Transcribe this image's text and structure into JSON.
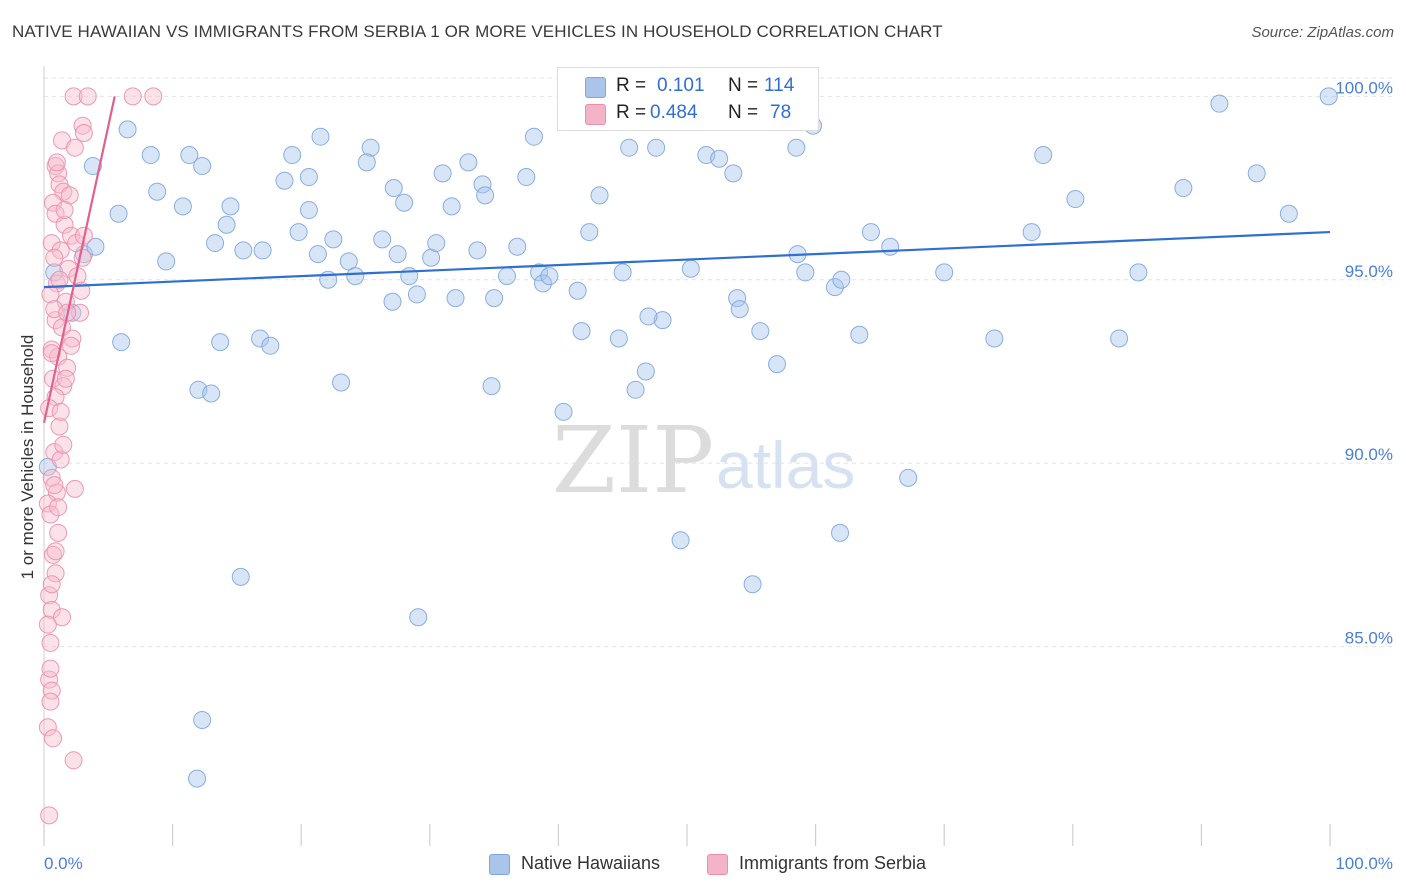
{
  "chart_data": {
    "type": "scatter",
    "title": "NATIVE HAWAIIAN VS IMMIGRANTS FROM SERBIA 1 OR MORE VEHICLES IN HOUSEHOLD CORRELATION CHART",
    "source": "Source: ZipAtlas.com",
    "xlabel": "",
    "ylabel": "1 or more Vehicles in Household",
    "xlim": [
      0,
      100
    ],
    "ylim": [
      80.0,
      100.5
    ],
    "x_tick_labels": [
      "0.0%",
      "100.0%"
    ],
    "y_ticks": [
      {
        "value": 100,
        "label": "100.0%"
      },
      {
        "value": 95,
        "label": "95.0%"
      },
      {
        "value": 90,
        "label": "90.0%"
      },
      {
        "value": 85,
        "label": "85.0%"
      }
    ],
    "grid": true,
    "watermark": {
      "zip": "ZIP",
      "atlas": "atlas"
    },
    "stats": [
      {
        "r_label": "R =",
        "r_value": "0.101",
        "n_label": "N =",
        "n_value": "114",
        "color": "#aac4ea"
      },
      {
        "r_label": "R =",
        "r_value": "0.484",
        "n_label": "N =",
        "n_value": "78",
        "color": "#f4b4c8"
      }
    ],
    "series": [
      {
        "name": "Native Hawaiians",
        "color": "#a9c6ee",
        "stroke": "#7da6df",
        "trend_color": "#2f6fd0",
        "trend": {
          "x0": 0,
          "y0": 94.8,
          "x1": 100,
          "y1": 96.3
        },
        "points": [
          [
            0.3,
            89.9
          ],
          [
            3.8,
            98.1
          ],
          [
            6.5,
            99.1
          ],
          [
            3.1,
            95.7
          ],
          [
            4.0,
            95.9
          ],
          [
            5.8,
            96.8
          ],
          [
            8.3,
            98.4
          ],
          [
            9.5,
            95.5
          ],
          [
            11.3,
            98.4
          ],
          [
            12.3,
            98.1
          ],
          [
            10.8,
            97.0
          ],
          [
            12.0,
            92.0
          ],
          [
            13.7,
            93.3
          ],
          [
            14.2,
            96.5
          ],
          [
            15.5,
            95.8
          ],
          [
            17.0,
            95.8
          ],
          [
            16.8,
            93.4
          ],
          [
            17.6,
            93.2
          ],
          [
            14.5,
            97.0
          ],
          [
            13.0,
            91.9
          ],
          [
            18.7,
            97.7
          ],
          [
            19.3,
            98.4
          ],
          [
            20.6,
            97.8
          ],
          [
            21.5,
            98.9
          ],
          [
            20.6,
            96.9
          ],
          [
            21.3,
            95.7
          ],
          [
            22.5,
            96.1
          ],
          [
            23.7,
            95.5
          ],
          [
            22.1,
            95.0
          ],
          [
            23.1,
            92.2
          ],
          [
            24.2,
            95.1
          ],
          [
            25.4,
            98.6
          ],
          [
            26.3,
            96.1
          ],
          [
            25.1,
            98.2
          ],
          [
            28.0,
            97.1
          ],
          [
            27.1,
            94.4
          ],
          [
            28.4,
            95.1
          ],
          [
            29.0,
            94.6
          ],
          [
            27.5,
            95.7
          ],
          [
            30.1,
            95.6
          ],
          [
            30.5,
            96.0
          ],
          [
            31.0,
            97.9
          ],
          [
            32.0,
            94.5
          ],
          [
            31.7,
            97.0
          ],
          [
            33.7,
            95.8
          ],
          [
            34.1,
            97.6
          ],
          [
            34.3,
            97.3
          ],
          [
            35.0,
            94.5
          ],
          [
            34.8,
            92.1
          ],
          [
            36.0,
            95.1
          ],
          [
            36.8,
            95.9
          ],
          [
            37.5,
            97.8
          ],
          [
            38.1,
            98.9
          ],
          [
            38.5,
            95.2
          ],
          [
            38.8,
            94.9
          ],
          [
            39.3,
            95.1
          ],
          [
            40.4,
            91.4
          ],
          [
            41.5,
            94.7
          ],
          [
            41.8,
            93.6
          ],
          [
            42.4,
            96.3
          ],
          [
            45.0,
            95.2
          ],
          [
            44.7,
            93.4
          ],
          [
            45.5,
            98.6
          ],
          [
            46.0,
            92.0
          ],
          [
            46.8,
            92.5
          ],
          [
            47.6,
            98.6
          ],
          [
            48.1,
            93.9
          ],
          [
            50.3,
            95.3
          ],
          [
            51.5,
            98.4
          ],
          [
            53.6,
            97.9
          ],
          [
            53.9,
            94.5
          ],
          [
            54.1,
            94.2
          ],
          [
            55.7,
            93.6
          ],
          [
            58.5,
            98.6
          ],
          [
            59.2,
            95.2
          ],
          [
            59.8,
            99.2
          ],
          [
            58.6,
            95.7
          ],
          [
            61.5,
            94.8
          ],
          [
            61.9,
            88.1
          ],
          [
            62.0,
            95.0
          ],
          [
            63.4,
            93.5
          ],
          [
            64.3,
            96.3
          ],
          [
            65.8,
            95.9
          ],
          [
            67.2,
            89.6
          ],
          [
            70.0,
            95.2
          ],
          [
            73.9,
            93.4
          ],
          [
            76.8,
            96.3
          ],
          [
            77.7,
            98.4
          ],
          [
            80.2,
            97.2
          ],
          [
            83.6,
            93.4
          ],
          [
            85.1,
            95.2
          ],
          [
            88.6,
            97.5
          ],
          [
            91.4,
            99.8
          ],
          [
            94.3,
            97.9
          ],
          [
            96.8,
            96.8
          ],
          [
            99.9,
            100.0
          ],
          [
            0.8,
            95.2
          ],
          [
            2.2,
            94.1
          ],
          [
            6.0,
            93.3
          ],
          [
            8.8,
            97.4
          ],
          [
            13.3,
            96.0
          ],
          [
            19.8,
            96.3
          ],
          [
            27.2,
            97.5
          ],
          [
            33.0,
            98.2
          ],
          [
            43.2,
            97.3
          ],
          [
            47.0,
            94.0
          ],
          [
            52.5,
            98.3
          ],
          [
            57.0,
            92.7
          ],
          [
            15.3,
            86.9
          ],
          [
            29.1,
            85.8
          ],
          [
            49.5,
            87.9
          ],
          [
            55.1,
            86.7
          ],
          [
            11.9,
            81.4
          ],
          [
            12.3,
            83.0
          ]
        ]
      },
      {
        "name": "Immigrants from Serbia",
        "color": "#f6bccd",
        "stroke": "#ec8fac",
        "trend_color": "#e0608e",
        "trend": {
          "x0": 0,
          "y0": 91.1,
          "x1": 5.5,
          "y1": 100.0
        },
        "points": [
          [
            2.3,
            100.0
          ],
          [
            3.4,
            100.0
          ],
          [
            6.9,
            100.0
          ],
          [
            8.5,
            100.0
          ],
          [
            3.0,
            99.2
          ],
          [
            3.1,
            99.0
          ],
          [
            1.4,
            98.8
          ],
          [
            2.4,
            98.6
          ],
          [
            0.9,
            98.1
          ],
          [
            1.1,
            97.9
          ],
          [
            1.2,
            97.6
          ],
          [
            1.5,
            97.4
          ],
          [
            0.7,
            97.1
          ],
          [
            0.9,
            96.8
          ],
          [
            1.6,
            96.5
          ],
          [
            2.1,
            96.2
          ],
          [
            0.6,
            96.0
          ],
          [
            1.3,
            95.8
          ],
          [
            0.8,
            95.6
          ],
          [
            1.9,
            95.3
          ],
          [
            2.6,
            95.1
          ],
          [
            1.0,
            94.9
          ],
          [
            0.5,
            94.6
          ],
          [
            1.7,
            94.4
          ],
          [
            2.8,
            94.1
          ],
          [
            0.9,
            93.9
          ],
          [
            1.4,
            93.7
          ],
          [
            2.2,
            93.4
          ],
          [
            0.6,
            93.1
          ],
          [
            1.1,
            92.9
          ],
          [
            1.8,
            92.6
          ],
          [
            0.7,
            92.3
          ],
          [
            1.5,
            92.1
          ],
          [
            0.9,
            91.8
          ],
          [
            0.4,
            91.5
          ],
          [
            1.2,
            91.0
          ],
          [
            0.8,
            90.3
          ],
          [
            1.3,
            90.1
          ],
          [
            0.6,
            89.6
          ],
          [
            1.0,
            89.2
          ],
          [
            0.3,
            88.9
          ],
          [
            0.5,
            88.6
          ],
          [
            1.1,
            88.1
          ],
          [
            0.7,
            87.5
          ],
          [
            0.9,
            87.0
          ],
          [
            0.4,
            86.4
          ],
          [
            0.6,
            86.0
          ],
          [
            0.3,
            85.6
          ],
          [
            0.5,
            85.1
          ],
          [
            0.4,
            84.1
          ],
          [
            0.6,
            83.8
          ],
          [
            0.5,
            83.5
          ],
          [
            0.3,
            82.8
          ],
          [
            0.7,
            82.5
          ],
          [
            2.3,
            81.9
          ],
          [
            0.4,
            80.4
          ],
          [
            1.0,
            98.2
          ],
          [
            2.0,
            97.3
          ],
          [
            1.6,
            96.9
          ],
          [
            2.5,
            96.0
          ],
          [
            3.0,
            95.6
          ],
          [
            1.2,
            95.0
          ],
          [
            0.8,
            94.2
          ],
          [
            2.1,
            93.2
          ],
          [
            1.7,
            92.3
          ],
          [
            1.3,
            91.4
          ],
          [
            2.4,
            89.3
          ],
          [
            1.1,
            88.8
          ],
          [
            0.9,
            87.6
          ],
          [
            0.6,
            86.7
          ],
          [
            1.4,
            85.8
          ],
          [
            0.5,
            84.4
          ],
          [
            3.1,
            96.2
          ],
          [
            2.9,
            94.7
          ],
          [
            1.8,
            94.1
          ],
          [
            0.6,
            93.0
          ],
          [
            1.5,
            90.5
          ],
          [
            0.8,
            89.4
          ]
        ]
      }
    ],
    "legend": [
      {
        "label": "Native Hawaiians",
        "color": "#aac4ea",
        "border": "#7da6df"
      },
      {
        "label": "Immigrants from Serbia",
        "color": "#f4b4c8",
        "border": "#ec8fac"
      }
    ],
    "legend_position": "bottom-center",
    "stats_position": "top-center"
  }
}
